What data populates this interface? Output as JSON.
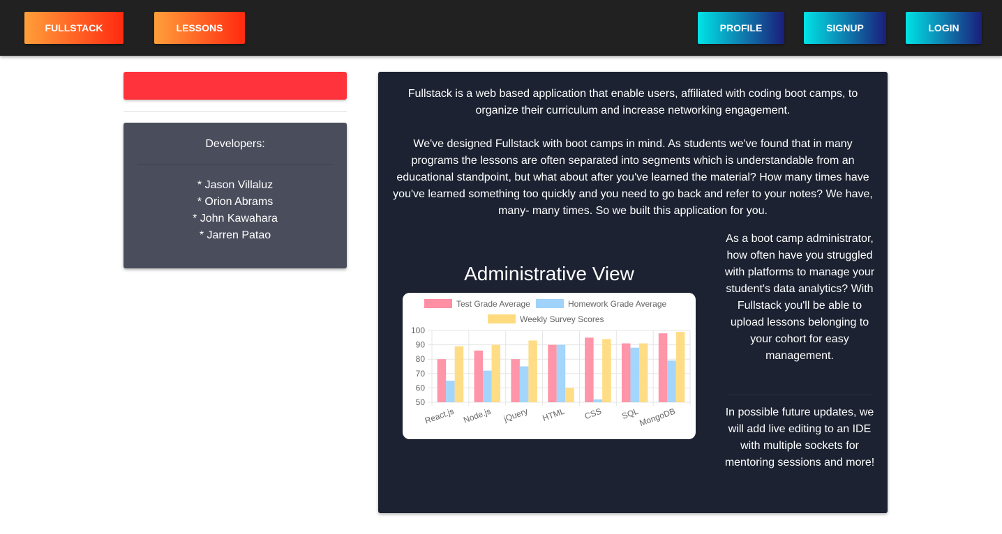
{
  "navbar": {
    "fullstack_label": "FULLSTACK",
    "lessons_label": "LESSONS",
    "profile_label": "PROFILE",
    "signup_label": "SIGNUP",
    "login_label": "LOGIN"
  },
  "developers": {
    "title": "Developers:",
    "names": [
      "* Jason Villaluz",
      "* Orion Abrams",
      "* John Kawahara",
      "* Jarren Patao"
    ]
  },
  "main": {
    "intro": "Fullstack is a web based application that enable users, affiliated with coding boot camps, to organize their curriculum and increase networking engagement.",
    "story": "We've designed Fullstack with boot camps in mind. As students we've found that in many programs the lessons are often separated into segments which is understandable from an educational standpoint, but what about after you've learned the material? How many times have you've learned something too quickly and you need to go back and refer to your notes? We have, many- many times. So we built this application for you.",
    "admin_title": "Administrative View",
    "side_text_1": "As a boot camp administrator, how often have you struggled with platforms to manage your student's data analytics? With Fullstack you'll be able to upload lessons belonging to your cohort for easy management.",
    "side_text_2": "In possible future updates, we will add live editing to an IDE with multiple sockets for mentoring sessions and more!"
  },
  "colors": {
    "warm_start": "#ff9f3a",
    "warm_end": "#ff2a10",
    "cool_start": "#00e3e6",
    "cool_end": "#1b1d7a",
    "red_bar": "#ff333b",
    "card_dark": "#1c2231",
    "card_gray": "#4a4e5c"
  },
  "chart_data": {
    "type": "bar",
    "categories": [
      "React.js",
      "Node.js",
      "jQuery",
      "HTML",
      "CSS",
      "SQL",
      "MongoDB"
    ],
    "series": [
      {
        "name": "Test Grade Average",
        "color": "#ff8fa3",
        "values": [
          80,
          86,
          80,
          90,
          95,
          91,
          98
        ]
      },
      {
        "name": "Homework Grade Average",
        "color": "#9fd3fa",
        "values": [
          65,
          72,
          75,
          90,
          52,
          88,
          79
        ]
      },
      {
        "name": "Weekly Survey Scores",
        "color": "#ffdb80",
        "values": [
          89,
          90,
          93,
          60,
          94,
          91,
          99
        ]
      }
    ],
    "yticks": [
      50,
      60,
      70,
      80,
      90,
      100
    ],
    "ylim": [
      50,
      100
    ],
    "grid": true,
    "legend_position": "top"
  }
}
